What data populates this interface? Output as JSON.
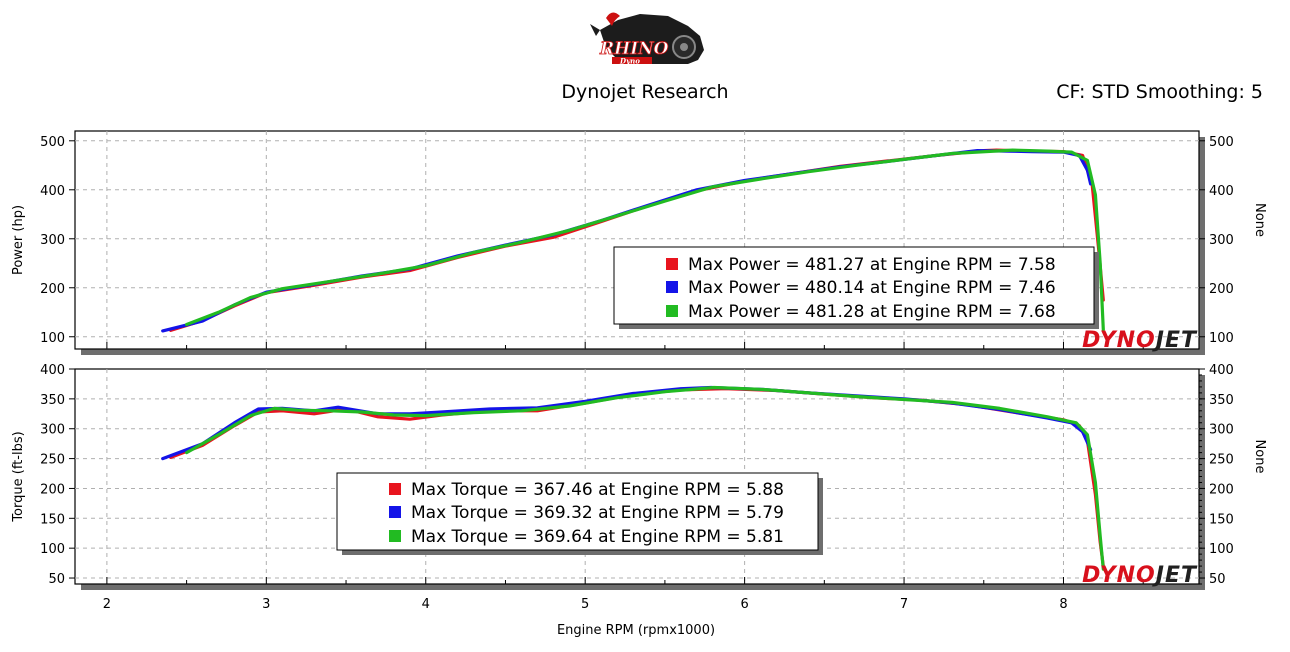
{
  "header": {
    "brand_logo_text": "RHINO",
    "brand_logo_subtext": "Dyno",
    "title": "Dynojet Research",
    "cf_label": "CF: STD Smoothing: 5"
  },
  "watermark": "DYNOJET",
  "colors": {
    "run1": "#e8141e",
    "run2": "#1414e8",
    "run3": "#22bb22",
    "grid": "#b0b0b0",
    "shadow": "#6e6e6e",
    "watermark_red": "#d8101c",
    "watermark_dark": "#202020"
  },
  "chart_data": [
    {
      "type": "line",
      "id": "power",
      "title": "",
      "xlabel": "Engine RPM (rpmx1000)",
      "ylabel": "Power (hp)",
      "ylabel_right": "None",
      "xlim": [
        1.8,
        8.85
      ],
      "ylim": [
        75,
        520
      ],
      "x_ticks": [
        2,
        3,
        4,
        5,
        6,
        7,
        8
      ],
      "y_ticks": [
        100,
        200,
        300,
        400,
        500
      ],
      "grid": true,
      "legend_position": "right-middle",
      "legend": [
        {
          "color": "run1",
          "text": "Max Power = 481.27 at Engine RPM = 7.58"
        },
        {
          "color": "run2",
          "text": "Max Power = 480.14 at Engine RPM = 7.46"
        },
        {
          "color": "run3",
          "text": "Max Power = 481.28 at Engine RPM = 7.68"
        }
      ],
      "series": [
        {
          "color": "run1",
          "x": [
            2.4,
            2.6,
            2.8,
            3.0,
            3.3,
            3.6,
            3.9,
            4.2,
            4.5,
            4.8,
            5.1,
            5.4,
            5.7,
            6.0,
            6.3,
            6.6,
            6.9,
            7.2,
            7.5,
            7.58,
            7.8,
            8.0,
            8.12,
            8.18,
            8.22,
            8.25
          ],
          "y": [
            113,
            133,
            163,
            190,
            205,
            222,
            235,
            262,
            285,
            303,
            335,
            368,
            398,
            418,
            433,
            448,
            459,
            470,
            480,
            481,
            479,
            478,
            470,
            410,
            280,
            175
          ]
        },
        {
          "color": "run2",
          "x": [
            2.35,
            2.6,
            2.8,
            3.0,
            3.3,
            3.6,
            3.9,
            4.2,
            4.5,
            4.8,
            5.1,
            5.4,
            5.7,
            6.0,
            6.3,
            6.6,
            6.9,
            7.2,
            7.46,
            7.8,
            8.0,
            8.1,
            8.15,
            8.17
          ],
          "y": [
            112,
            132,
            165,
            191,
            207,
            224,
            238,
            265,
            287,
            308,
            337,
            369,
            400,
            419,
            433,
            447,
            458,
            470,
            480,
            478,
            477,
            470,
            440,
            412
          ]
        },
        {
          "color": "run3",
          "x": [
            2.5,
            2.7,
            2.9,
            3.1,
            3.4,
            3.7,
            4.0,
            4.3,
            4.6,
            4.9,
            5.2,
            5.5,
            5.8,
            6.1,
            6.4,
            6.7,
            7.0,
            7.3,
            7.68,
            7.9,
            8.05,
            8.15,
            8.2,
            8.23,
            8.25
          ],
          "y": [
            125,
            150,
            180,
            198,
            213,
            228,
            245,
            272,
            293,
            317,
            347,
            377,
            406,
            422,
            437,
            450,
            462,
            474,
            481,
            479,
            477,
            460,
            390,
            250,
            115
          ]
        }
      ]
    },
    {
      "type": "line",
      "id": "torque",
      "title": "",
      "xlabel": "Engine RPM (rpmx1000)",
      "ylabel": "Torque (ft-lbs)",
      "ylabel_right": "None",
      "xlim": [
        1.8,
        8.85
      ],
      "ylim": [
        40,
        400
      ],
      "x_ticks": [
        2,
        3,
        4,
        5,
        6,
        7,
        8
      ],
      "y_ticks": [
        50,
        100,
        150,
        200,
        250,
        300,
        350,
        400
      ],
      "grid": true,
      "legend_position": "center",
      "legend": [
        {
          "color": "run1",
          "text": "Max Torque = 367.46 at Engine RPM = 5.88"
        },
        {
          "color": "run2",
          "text": "Max Torque = 369.32 at Engine RPM = 5.79"
        },
        {
          "color": "run3",
          "text": "Max Torque = 369.64 at Engine RPM = 5.81"
        }
      ],
      "series": [
        {
          "color": "run1",
          "x": [
            2.4,
            2.6,
            2.8,
            2.95,
            3.1,
            3.3,
            3.5,
            3.7,
            3.9,
            4.1,
            4.4,
            4.7,
            5.0,
            5.3,
            5.6,
            5.88,
            6.2,
            6.5,
            6.8,
            7.1,
            7.4,
            7.7,
            8.0,
            8.1,
            8.15,
            8.2,
            8.23,
            8.25
          ],
          "y": [
            252,
            272,
            305,
            328,
            330,
            325,
            333,
            320,
            316,
            323,
            330,
            330,
            343,
            357,
            365,
            367,
            364,
            358,
            352,
            348,
            340,
            327,
            315,
            305,
            280,
            190,
            110,
            70
          ]
        },
        {
          "color": "run2",
          "x": [
            2.35,
            2.6,
            2.8,
            2.95,
            3.1,
            3.3,
            3.45,
            3.7,
            3.9,
            4.1,
            4.4,
            4.7,
            5.0,
            5.3,
            5.6,
            5.79,
            6.1,
            6.4,
            6.7,
            7.0,
            7.3,
            7.6,
            7.9,
            8.05,
            8.12,
            8.17
          ],
          "y": [
            250,
            275,
            310,
            333,
            334,
            330,
            336,
            325,
            325,
            328,
            333,
            335,
            346,
            359,
            367,
            369,
            366,
            360,
            355,
            350,
            343,
            332,
            318,
            310,
            295,
            265
          ]
        },
        {
          "color": "run3",
          "x": [
            2.5,
            2.7,
            2.9,
            3.05,
            3.2,
            3.4,
            3.6,
            3.8,
            4.0,
            4.3,
            4.6,
            4.9,
            5.2,
            5.5,
            5.81,
            6.1,
            6.4,
            6.7,
            7.0,
            7.3,
            7.6,
            7.9,
            8.08,
            8.15,
            8.2,
            8.23,
            8.25
          ],
          "y": [
            260,
            290,
            322,
            334,
            331,
            330,
            328,
            323,
            322,
            327,
            330,
            338,
            352,
            362,
            369,
            366,
            360,
            354,
            349,
            344,
            334,
            320,
            310,
            290,
            210,
            120,
            65
          ]
        }
      ]
    }
  ]
}
